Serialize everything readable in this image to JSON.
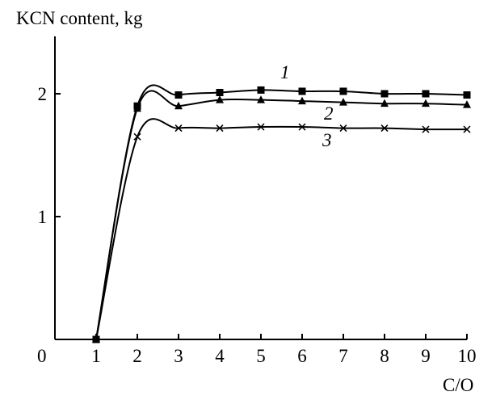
{
  "chart_data": {
    "type": "line",
    "ylabel": "KCN content, kg",
    "xlabel": "C/O",
    "origin_label": "0",
    "xlim": [
      0,
      10
    ],
    "ylim": [
      0,
      2.4
    ],
    "x_ticks": [
      1,
      2,
      3,
      4,
      5,
      6,
      7,
      8,
      9,
      10
    ],
    "x_tick_labels": [
      "1",
      "2",
      "3",
      "4",
      "5",
      "6",
      "7",
      "8",
      "9",
      "10"
    ],
    "y_ticks": [
      1,
      2
    ],
    "y_tick_labels": [
      "1",
      "2"
    ],
    "grid": false,
    "series": [
      {
        "name": "1",
        "marker": "square",
        "x": [
          1,
          2,
          3,
          4,
          5,
          6,
          7,
          8,
          9,
          10
        ],
        "y": [
          0,
          1.9,
          1.99,
          2.01,
          2.03,
          2.02,
          2.02,
          2.0,
          2.0,
          1.99
        ]
      },
      {
        "name": "2",
        "marker": "triangle",
        "x": [
          1,
          2,
          3,
          4,
          5,
          6,
          7,
          8,
          9,
          10
        ],
        "y": [
          0,
          1.88,
          1.9,
          1.95,
          1.95,
          1.94,
          1.93,
          1.92,
          1.92,
          1.91
        ]
      },
      {
        "name": "3",
        "marker": "cross",
        "x": [
          1,
          2,
          3,
          4,
          5,
          6,
          7,
          8,
          9,
          10
        ],
        "y": [
          0,
          1.65,
          1.72,
          1.72,
          1.73,
          1.73,
          1.72,
          1.72,
          1.71,
          1.71
        ]
      }
    ]
  }
}
